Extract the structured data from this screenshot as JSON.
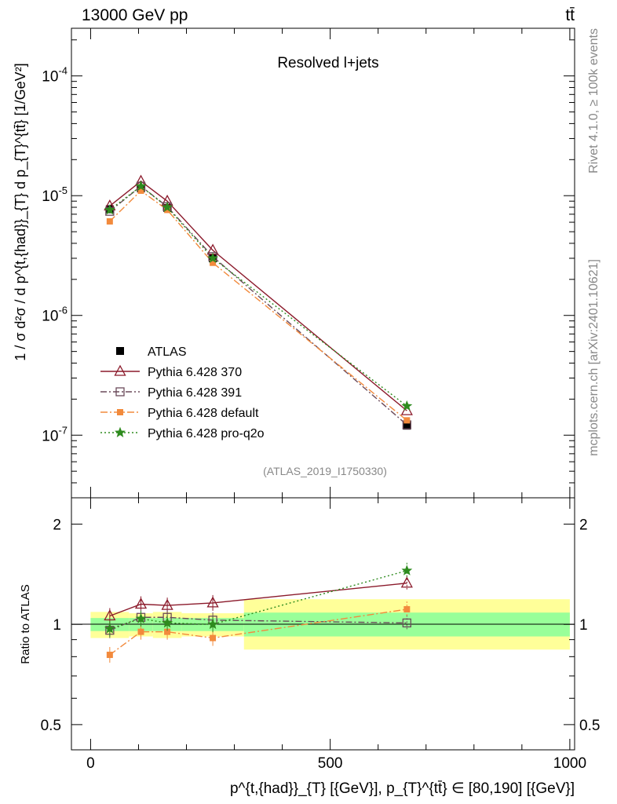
{
  "header": {
    "left": "13000 GeV pp",
    "right": "tt̄"
  },
  "side_labels": {
    "rivet": "Rivet 4.1.0, ≥ 100k events",
    "mcplots": "mcplots.cern.ch [arXiv:2401.10621]"
  },
  "colors": {
    "atlas": "#000000",
    "py370": "#8b1a2b",
    "py391": "#6b4a5a",
    "pydefault": "#f28a3c",
    "pyq2o": "#2e8b1e",
    "band_inner": "#99ff99",
    "band_outer": "#ffff99"
  },
  "chart_data": [
    {
      "type": "line",
      "panel": "main",
      "title": "Resolved l+jets",
      "watermark": "(ATLAS_2019_I1750330)",
      "ylabel": "1 / σ d²σ / d p^{t,{had}}_{T} d p_{T}^{tt̄} [1/GeV²]",
      "yscale": "log",
      "ylim": [
        3e-08,
        0.00025
      ],
      "xlim": [
        -40,
        1010
      ],
      "y_ticks": [
        {
          "value": 1e-07,
          "label": "10^-7"
        },
        {
          "value": 1e-06,
          "label": "10^-6"
        },
        {
          "value": 1e-05,
          "label": "10^-5"
        },
        {
          "value": 0.0001,
          "label": "10^-4"
        }
      ],
      "x": [
        40,
        105,
        160,
        255,
        660
      ],
      "series": [
        {
          "name": "ATLAS",
          "key": "atlas",
          "marker": "square",
          "values": [
            7.7e-06,
            1.15e-05,
            7.9e-06,
            3e-06,
            1.2e-07
          ]
        },
        {
          "name": "Pythia 6.428 370",
          "key": "py370",
          "marker": "triangle",
          "values": [
            8.2e-06,
            1.32e-05,
            9e-06,
            3.5e-06,
            1.6e-07
          ]
        },
        {
          "name": "Pythia 6.428 391",
          "key": "py391",
          "marker": "open-square",
          "values": [
            7.4e-06,
            1.2e-05,
            8.1e-06,
            3.1e-06,
            1.22e-07
          ]
        },
        {
          "name": "Pythia 6.428 default",
          "key": "pydefault",
          "marker": "filled-square",
          "values": [
            6.1e-06,
            1.1e-05,
            7.6e-06,
            2.75e-06,
            1.33e-07
          ]
        },
        {
          "name": "Pythia 6.428 pro-q2o",
          "key": "pyq2o",
          "marker": "star",
          "values": [
            7.6e-06,
            1.2e-05,
            8e-06,
            3e-06,
            1.75e-07
          ]
        }
      ]
    },
    {
      "type": "line",
      "panel": "ratio",
      "ylabel": "Ratio to ATLAS",
      "xlabel": "p^{t,{had}}_{T} [{GeV}], p_{T}^{tt̄} ∈ [80,190] [{GeV}]",
      "yscale": "log",
      "ylim": [
        0.42,
        2.4
      ],
      "xlim": [
        -40,
        1010
      ],
      "y_ticks": [
        {
          "value": 0.5,
          "label": "0.5"
        },
        {
          "value": 1,
          "label": "1"
        },
        {
          "value": 2,
          "label": "2"
        }
      ],
      "x_ticks": [
        {
          "value": 0,
          "label": "0"
        },
        {
          "value": 500,
          "label": "500"
        },
        {
          "value": 1000,
          "label": "1000"
        }
      ],
      "bands": [
        {
          "x0": 0,
          "x1": 80,
          "inner": [
            0.955,
            1.045
          ],
          "outer": [
            0.91,
            1.09
          ]
        },
        {
          "x0": 80,
          "x1": 130,
          "inner": [
            0.955,
            1.045
          ],
          "outer": [
            0.92,
            1.08
          ]
        },
        {
          "x0": 130,
          "x1": 190,
          "inner": [
            0.955,
            1.045
          ],
          "outer": [
            0.91,
            1.09
          ]
        },
        {
          "x0": 190,
          "x1": 320,
          "inner": [
            0.955,
            1.045
          ],
          "outer": [
            0.92,
            1.08
          ]
        },
        {
          "x0": 320,
          "x1": 1000,
          "inner": [
            0.92,
            1.085
          ],
          "outer": [
            0.84,
            1.19
          ]
        }
      ],
      "x": [
        40,
        105,
        160,
        255,
        660
      ],
      "series": [
        {
          "name": "Pythia 6.428 370",
          "key": "py370",
          "marker": "triangle",
          "values": [
            1.06,
            1.15,
            1.14,
            1.16,
            1.33
          ]
        },
        {
          "name": "Pythia 6.428 391",
          "key": "py391",
          "marker": "open-square",
          "values": [
            0.96,
            1.05,
            1.05,
            1.03,
            1.01
          ]
        },
        {
          "name": "Pythia 6.428 default",
          "key": "pydefault",
          "marker": "filled-square",
          "values": [
            0.81,
            0.95,
            0.95,
            0.91,
            1.11
          ]
        },
        {
          "name": "Pythia 6.428 pro-q2o",
          "key": "pyq2o",
          "marker": "star",
          "values": [
            0.97,
            1.04,
            1.01,
            1.0,
            1.45
          ]
        }
      ]
    }
  ]
}
